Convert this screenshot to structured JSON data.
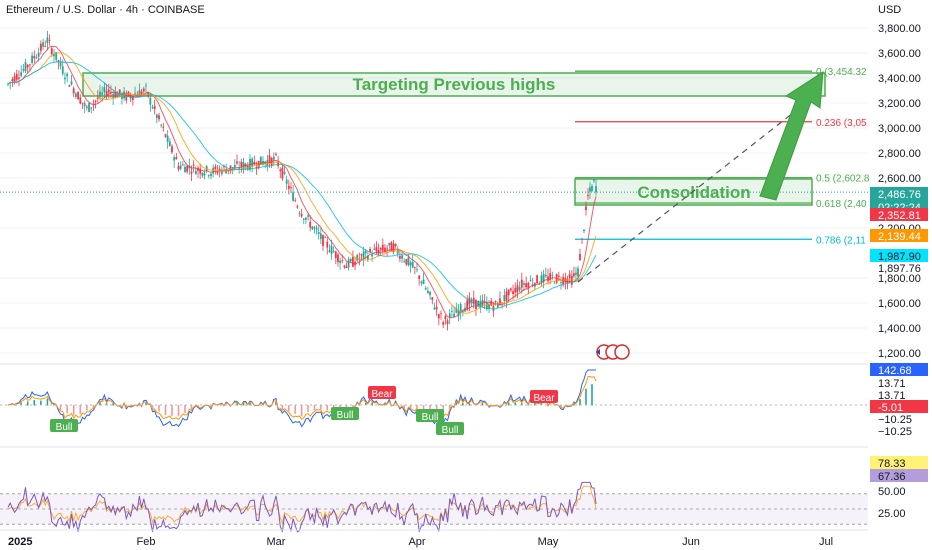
{
  "header": {
    "title": "Ethereum / U.S. Dollar · 4h · COINBASE",
    "currency": "USD"
  },
  "colors": {
    "green": "#4caf50",
    "red": "#f23645",
    "teal": "#26a69a",
    "cyan": "#00bcd4",
    "orange": "#ff9800",
    "blue": "#2962ff",
    "purple": "#7e57c2"
  },
  "chart_data": {
    "type": "candlestick",
    "x_ticks": [
      "2025",
      "Feb",
      "Mar",
      "Apr",
      "May",
      "Jun",
      "Jul"
    ],
    "ylim": [
      1000,
      3850
    ],
    "y_ticks": [
      "3,800.00",
      "3,600.00",
      "3,400.00",
      "3,200.00",
      "3,000.00",
      "2,800.00",
      "2,600.00",
      "2,200.00",
      "1,800.00",
      "1,600.00",
      "1,400.00",
      "1,200.00"
    ],
    "price_path": [
      {
        "x": "2025",
        "y": 3350
      },
      {
        "x": "2025",
        "y": 3500
      },
      {
        "x": "2025",
        "y": 3700
      },
      {
        "x": "2025",
        "y": 3400
      },
      {
        "x": "2025",
        "y": 3150
      },
      {
        "x": "2025",
        "y": 3300
      },
      {
        "x": "2025",
        "y": 3250
      },
      {
        "x": "Feb",
        "y": 3300
      },
      {
        "x": "Feb",
        "y": 2700
      },
      {
        "x": "Feb",
        "y": 2650
      },
      {
        "x": "Feb",
        "y": 2700
      },
      {
        "x": "Mar",
        "y": 2750
      },
      {
        "x": "Mar",
        "y": 2350
      },
      {
        "x": "Mar",
        "y": 2100
      },
      {
        "x": "Mar",
        "y": 1900
      },
      {
        "x": "Mar",
        "y": 2000
      },
      {
        "x": "Mar",
        "y": 2050
      },
      {
        "x": "Apr",
        "y": 1850
      },
      {
        "x": "Apr",
        "y": 1450
      },
      {
        "x": "Apr",
        "y": 1600
      },
      {
        "x": "Apr",
        "y": 1580
      },
      {
        "x": "Apr",
        "y": 1750
      },
      {
        "x": "May",
        "y": 1800
      },
      {
        "x": "May",
        "y": 1790
      },
      {
        "x": "May",
        "y": 1850
      },
      {
        "x": "May",
        "y": 2450
      },
      {
        "x": "May",
        "y": 2560
      },
      {
        "x": "May",
        "y": 2490
      }
    ],
    "fib_levels": [
      {
        "label": "0 (3,454.32",
        "value": 3454.32
      },
      {
        "label": "0.236 (3,05",
        "value": 3050
      },
      {
        "label": "0.5 (2,602.8",
        "value": 2602.8
      },
      {
        "label": "0.618 (2,40",
        "value": 2400
      },
      {
        "label": "0.786 (2,11",
        "value": 2110
      }
    ],
    "annotations": {
      "resistance": "Targeting Previous highs",
      "consolidation": "Consolidation"
    },
    "price_labels": [
      {
        "text": "2,486.76",
        "color": "#26a69a",
        "value": 2486.76
      },
      {
        "text": "02:22:24",
        "color": "#26a69a",
        "value": 2420
      },
      {
        "text": "2,352.81",
        "color": "#f23645",
        "value": 2352.81
      },
      {
        "text": "2,139.44",
        "color": "#ff9800",
        "value": 2139.44
      },
      {
        "text": "1,987.90",
        "color": "#00e5ff",
        "value": 1987.9
      },
      {
        "text": "1,897.76",
        "color": "",
        "value": 1897.76
      }
    ],
    "macd": {
      "labels": [
        {
          "text": "142.68",
          "color": "#2962ff"
        },
        {
          "text": "13.71",
          "color": ""
        },
        {
          "text": "13.71",
          "color": ""
        },
        {
          "text": "-5.01",
          "color": "#f23645"
        },
        {
          "text": "−10.25",
          "color": ""
        },
        {
          "text": "−10.25",
          "color": ""
        }
      ],
      "signals": [
        {
          "text": "Bull",
          "type": "bull",
          "x": "2025"
        },
        {
          "text": "Bull",
          "type": "bull",
          "x": "Feb"
        },
        {
          "text": "Bear",
          "type": "bear",
          "x": "Mar"
        },
        {
          "text": "Bull",
          "type": "bull",
          "x": "Apr"
        },
        {
          "text": "Bull",
          "type": "bull",
          "x": "Apr"
        },
        {
          "text": "Bear",
          "type": "bear",
          "x": "May"
        }
      ]
    },
    "rsi": {
      "values_shown": [
        "78.33",
        "67.36"
      ],
      "ticks": [
        "50.00",
        "25.00"
      ],
      "upper": 70,
      "lower": 30
    }
  }
}
